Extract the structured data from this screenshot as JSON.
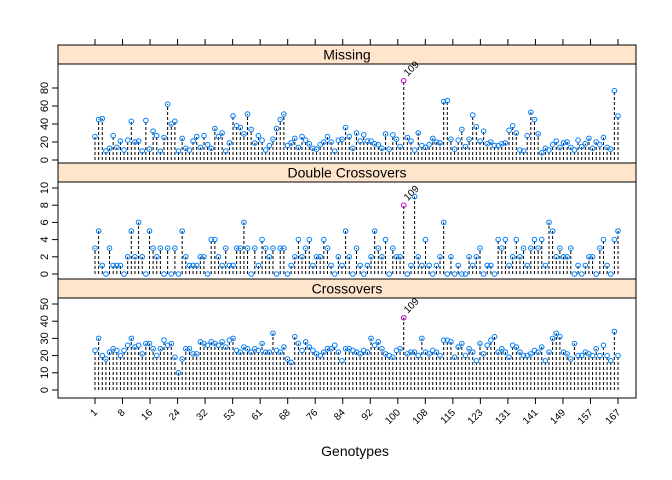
{
  "chart_data": {
    "type": "scatter",
    "style": "lattice dot-plot with dashed drop lines to zero",
    "xlabel": "Genotypes",
    "x_tick_labels": [
      "1",
      "8",
      "16",
      "24",
      "32",
      "53",
      "61",
      "68",
      "76",
      "84",
      "92",
      "100",
      "108",
      "115",
      "123",
      "131",
      "141",
      "149",
      "157",
      "167"
    ],
    "n_genotypes": 145,
    "highlight": {
      "label": "109",
      "index": 85,
      "color": "#cc00cc"
    },
    "colors": {
      "point": "#0080ff",
      "strip_bg": "#ffe5cc",
      "dropline": "#000000"
    },
    "panels": [
      {
        "title": "Missing",
        "ylim": [
          0,
          100
        ],
        "yticks": [
          0,
          20,
          40,
          60,
          80
        ],
        "values": [
          26,
          45,
          46,
          10,
          13,
          27,
          14,
          21,
          11,
          22,
          43,
          20,
          21,
          10,
          44,
          12,
          32,
          27,
          10,
          25,
          62,
          40,
          43,
          10,
          24,
          13,
          11,
          21,
          26,
          14,
          27,
          17,
          13,
          35,
          26,
          30,
          10,
          19,
          49,
          38,
          36,
          29,
          51,
          34,
          19,
          27,
          22,
          11,
          16,
          23,
          35,
          45,
          51,
          16,
          19,
          24,
          14,
          26,
          22,
          18,
          13,
          12,
          17,
          20,
          26,
          20,
          10,
          22,
          23,
          36,
          26,
          13,
          30,
          21,
          28,
          21,
          21,
          18,
          17,
          13,
          29,
          12,
          28,
          23,
          15,
          88,
          25,
          21,
          11,
          30,
          16,
          14,
          17,
          24,
          20,
          19,
          65,
          66,
          23,
          12,
          22,
          34,
          15,
          23,
          50,
          37,
          21,
          32,
          18,
          20,
          16,
          16,
          18,
          19,
          33,
          38,
          30,
          11,
          10,
          27,
          53,
          45,
          29,
          8,
          13,
          11,
          17,
          21,
          14,
          19,
          20,
          14,
          11,
          22,
          15,
          18,
          24,
          13,
          20,
          17,
          25,
          14,
          12,
          77,
          49
        ]
      },
      {
        "title": "Double Crossovers",
        "ylim": [
          0,
          10
        ],
        "yticks": [
          0,
          2,
          4,
          6,
          8,
          10
        ],
        "values": [
          3,
          5,
          1,
          0,
          3,
          1,
          1,
          1,
          0,
          2,
          5,
          2,
          6,
          2,
          0,
          5,
          3,
          2,
          3,
          0,
          3,
          0,
          3,
          0,
          5,
          2,
          1,
          1,
          1,
          2,
          2,
          0,
          4,
          4,
          2,
          1,
          3,
          1,
          1,
          3,
          3,
          6,
          3,
          0,
          3,
          1,
          4,
          3,
          2,
          3,
          0,
          3,
          3,
          0,
          1,
          2,
          4,
          2,
          3,
          4,
          1,
          2,
          2,
          4,
          3,
          1,
          0,
          2,
          1,
          5,
          2,
          0,
          3,
          1,
          0,
          1,
          2,
          5,
          3,
          2,
          4,
          0,
          3,
          2,
          2,
          8,
          0,
          1,
          9,
          2,
          1,
          4,
          1,
          0,
          1,
          2,
          6,
          0,
          2,
          0,
          1,
          0,
          0,
          2,
          1,
          2,
          3,
          0,
          1,
          1,
          0,
          4,
          3,
          4,
          1,
          2,
          4,
          2,
          3,
          1,
          3,
          4,
          3,
          4,
          1,
          6,
          5,
          2,
          3,
          2,
          2,
          3,
          0,
          1,
          0,
          1,
          2,
          2,
          0,
          3,
          4,
          1,
          0,
          4,
          5
        ]
      },
      {
        "title": "Crossovers",
        "ylim": [
          0,
          50
        ],
        "yticks": [
          0,
          10,
          20,
          30,
          40,
          50
        ],
        "values": [
          23,
          30,
          20,
          18,
          22,
          24,
          23,
          20,
          23,
          26,
          30,
          25,
          26,
          21,
          27,
          27,
          24,
          20,
          24,
          29,
          26,
          27,
          19,
          10,
          18,
          24,
          24,
          21,
          21,
          28,
          27,
          26,
          28,
          27,
          26,
          28,
          25,
          29,
          30,
          23,
          22,
          25,
          24,
          22,
          24,
          23,
          27,
          22,
          22,
          33,
          23,
          22,
          25,
          18,
          16,
          31,
          27,
          23,
          28,
          25,
          23,
          21,
          20,
          22,
          24,
          24,
          26,
          22,
          17,
          24,
          24,
          23,
          22,
          21,
          23,
          22,
          30,
          26,
          28,
          24,
          21,
          20,
          19,
          23,
          24,
          42,
          21,
          22,
          22,
          20,
          30,
          22,
          21,
          23,
          22,
          20,
          29,
          29,
          28,
          19,
          25,
          27,
          20,
          24,
          22,
          17,
          27,
          21,
          26,
          29,
          31,
          22,
          24,
          22,
          19,
          26,
          25,
          22,
          20,
          20,
          21,
          23,
          22,
          25,
          17,
          22,
          30,
          33,
          31,
          22,
          21,
          18,
          27,
          20,
          20,
          22,
          21,
          20,
          24,
          20,
          26,
          20,
          17,
          34,
          20
        ]
      }
    ]
  }
}
